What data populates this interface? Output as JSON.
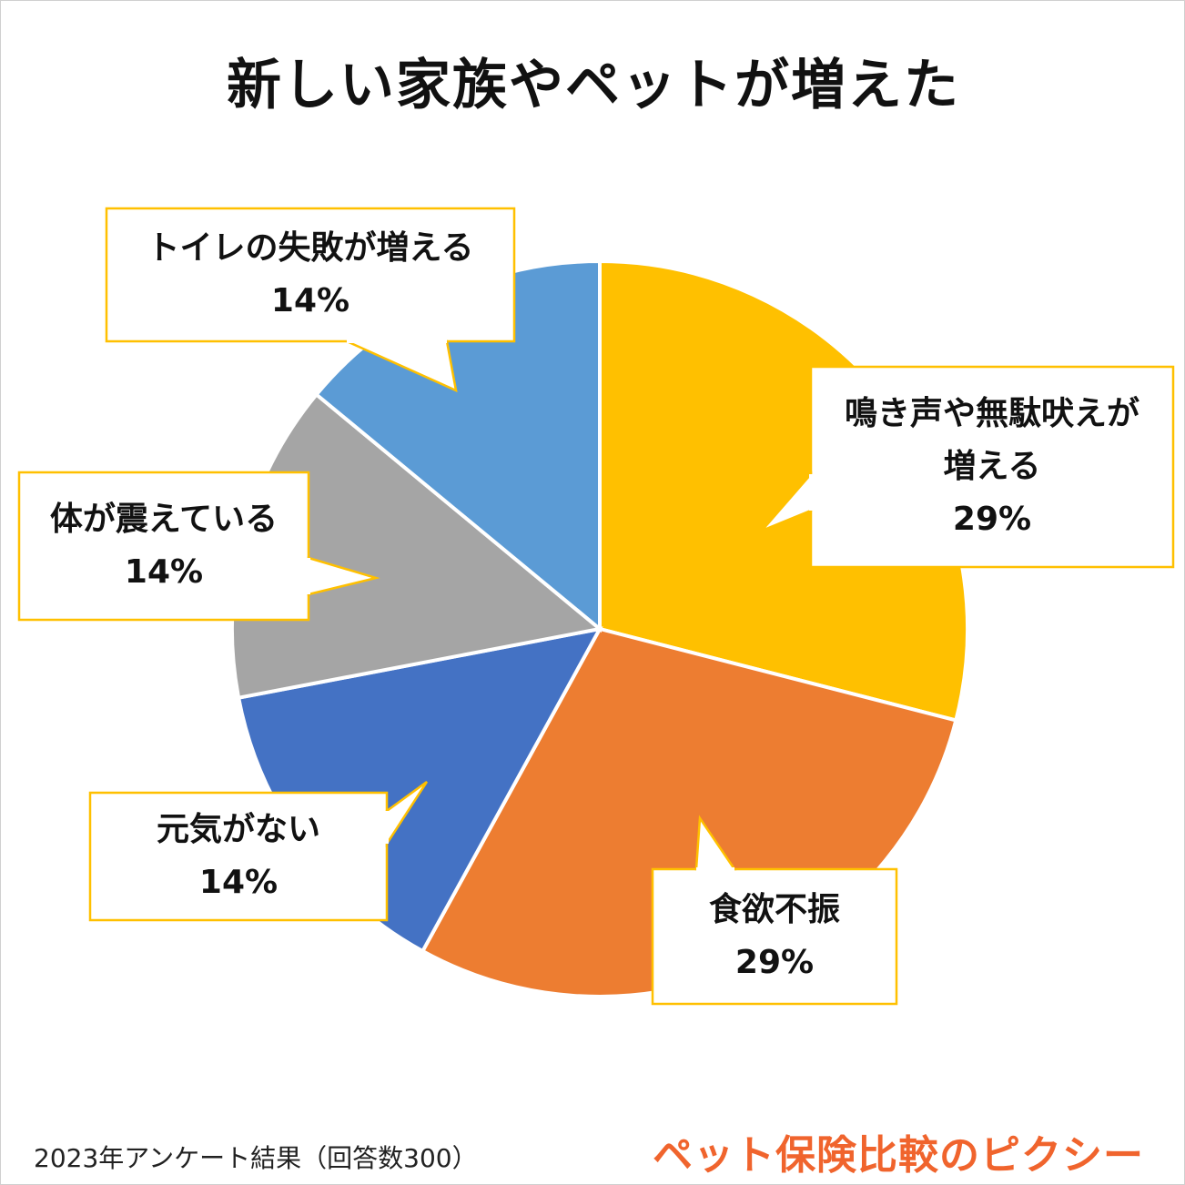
{
  "chart_data": {
    "type": "pie",
    "title": "新しい家族やペットが増えた",
    "slices": [
      {
        "label": "鳴き声や無駄吠えが増える",
        "label_lines": [
          "鳴き声や無駄吠えが",
          "増える"
        ],
        "value": 29,
        "value_label": "29%",
        "color": "#FFC000"
      },
      {
        "label": "食欲不振",
        "label_lines": [
          "食欲不振"
        ],
        "value": 29,
        "value_label": "29%",
        "color": "#ED7D31"
      },
      {
        "label": "元気がない",
        "label_lines": [
          "元気がない"
        ],
        "value": 14,
        "value_label": "14%",
        "color": "#4472C4"
      },
      {
        "label": "体が震えている",
        "label_lines": [
          "体が震えている"
        ],
        "value": 14,
        "value_label": "14%",
        "color": "#A5A5A5"
      },
      {
        "label": "トイレの失敗が増える",
        "label_lines": [
          "トイレの失敗が増える"
        ],
        "value": 14,
        "value_label": "14%",
        "color": "#5B9BD5"
      }
    ],
    "callout_border_color": "#FFC000"
  },
  "footnote": "2023年アンケート結果（回答数300）",
  "brand": "ペット保険比較のピクシー"
}
